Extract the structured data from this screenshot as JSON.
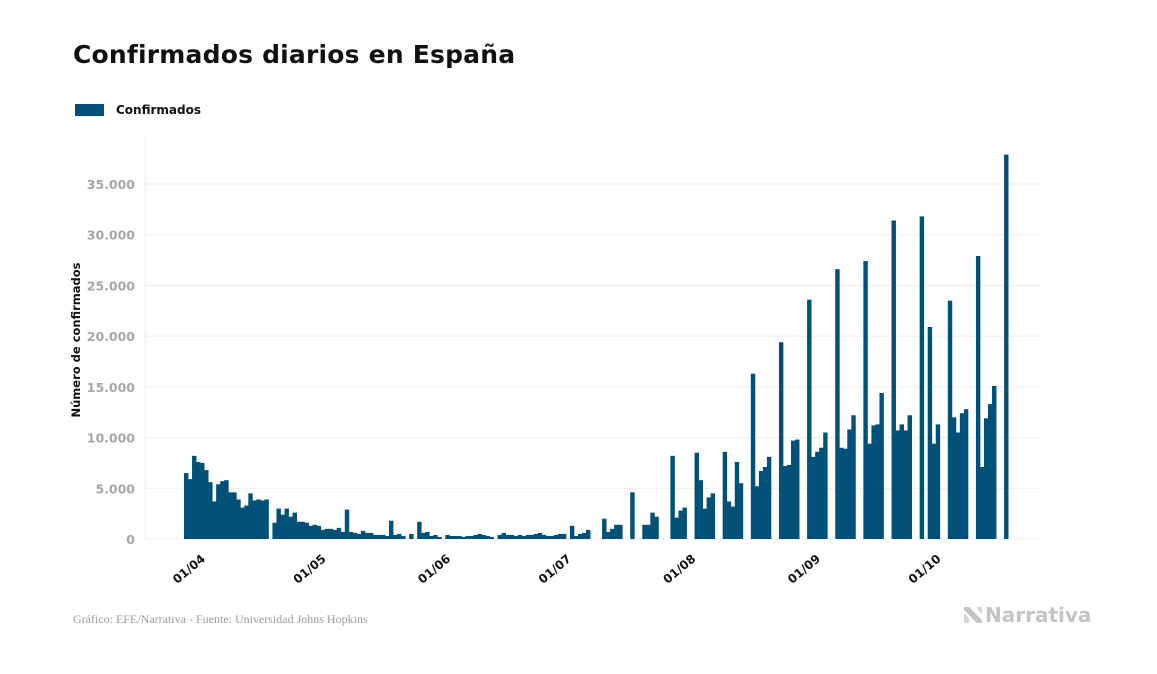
{
  "title": "Confirmados diarios en España",
  "legend": [
    {
      "label": "Confirmados",
      "color": "#005078"
    }
  ],
  "footer": {
    "source": "Gráfico: EFE/Narrativa - Fuente: Universidad Johns Hopkins",
    "brand": "Narrativa",
    "brand_icon": "narrativa-logo-icon"
  },
  "chart_data": {
    "type": "bar",
    "title": "Confirmados diarios en España",
    "xlabel": "",
    "ylabel": "Número de confirmados",
    "ylim": [
      0,
      38500
    ],
    "yticks": [
      0,
      5000,
      10000,
      15000,
      20000,
      25000,
      30000,
      35000
    ],
    "ytick_labels": [
      "0",
      "5.000",
      "10.000",
      "15.000",
      "20.000",
      "25.000",
      "30.000",
      "35.000"
    ],
    "xticks": [
      {
        "label": "01/04",
        "day": 2
      },
      {
        "label": "01/05",
        "day": 32
      },
      {
        "label": "01/06",
        "day": 63
      },
      {
        "label": "01/07",
        "day": 93
      },
      {
        "label": "01/08",
        "day": 124
      },
      {
        "label": "01/09",
        "day": 155
      },
      {
        "label": "01/10",
        "day": 185
      }
    ],
    "grid": true,
    "legend_position": "top-left",
    "start_date": "30/03",
    "series": [
      {
        "name": "Confirmados",
        "color": "#005078",
        "values": [
          6500,
          5900,
          8200,
          7600,
          7500,
          6800,
          5600,
          3700,
          5400,
          5700,
          5800,
          4600,
          4600,
          3900,
          3100,
          3300,
          4500,
          3800,
          3900,
          3800,
          3900,
          null,
          1600,
          3000,
          2400,
          3000,
          2200,
          2600,
          1700,
          1700,
          1600,
          1300,
          1400,
          1300,
          900,
          1000,
          1000,
          900,
          1100,
          700,
          2900,
          700,
          600,
          500,
          800,
          600,
          600,
          400,
          400,
          400,
          300,
          1800,
          400,
          500,
          300,
          null,
          500,
          null,
          1700,
          600,
          700,
          300,
          400,
          200,
          null,
          400,
          300,
          300,
          300,
          200,
          300,
          300,
          400,
          500,
          400,
          300,
          200,
          null,
          400,
          600,
          400,
          400,
          300,
          400,
          300,
          400,
          400,
          500,
          600,
          400,
          300,
          300,
          400,
          500,
          500,
          null,
          1300,
          300,
          500,
          600,
          900,
          null,
          null,
          null,
          2000,
          700,
          1000,
          1400,
          1400,
          null,
          null,
          4600,
          null,
          null,
          1400,
          1400,
          2600,
          2200,
          null,
          null,
          null,
          8200,
          2100,
          2800,
          3100,
          null,
          null,
          8500,
          5800,
          3000,
          4100,
          4500,
          null,
          null,
          8600,
          3700,
          3200,
          7600,
          5500,
          null,
          null,
          16300,
          5200,
          6700,
          7100,
          8100,
          null,
          null,
          19400,
          7200,
          7300,
          9700,
          9800,
          null,
          null,
          23600,
          8100,
          8600,
          9000,
          10500,
          null,
          null,
          26600,
          9000,
          8900,
          10800,
          12200,
          null,
          null,
          27400,
          9400,
          11200,
          11300,
          14400,
          null,
          null,
          31400,
          10700,
          11300,
          10700,
          12200,
          null,
          null,
          31800,
          null,
          20900,
          9400,
          11300,
          null,
          null,
          23500,
          12000,
          10500,
          12400,
          12800,
          null,
          null,
          27900,
          7100,
          11900,
          13300,
          15100,
          null,
          null,
          37900
        ]
      }
    ]
  }
}
